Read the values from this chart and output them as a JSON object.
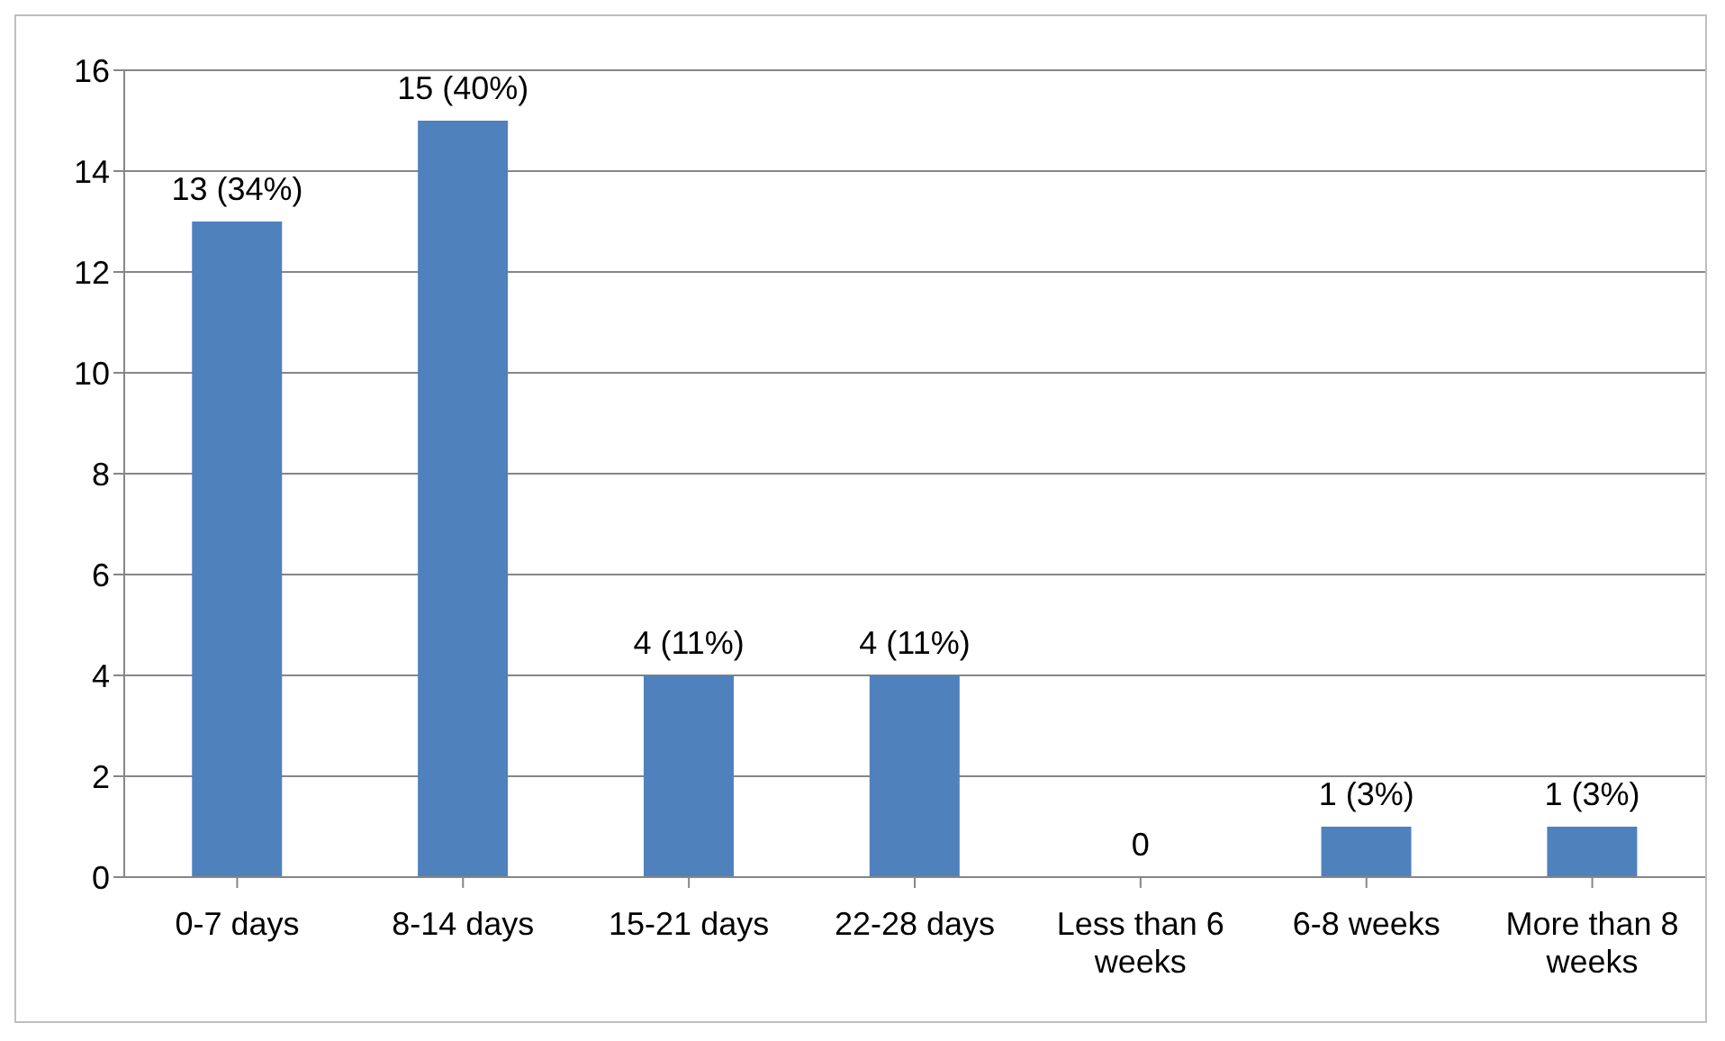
{
  "chart_data": {
    "type": "bar",
    "categories": [
      "0-7 days",
      "8-14 days",
      "15-21 days",
      "22-28 days",
      "Less than 6 weeks",
      "6-8 weeks",
      "More than 8 weeks"
    ],
    "values": [
      13,
      15,
      4,
      4,
      0,
      1,
      1
    ],
    "value_labels": [
      "13 (34%)",
      "15 (40%)",
      "4 (11%)",
      "4 (11%)",
      "0",
      "1 (3%)",
      "1 (3%)"
    ],
    "color": "#4f81bd",
    "ylim": [
      0,
      16
    ],
    "yticks": [
      0,
      2,
      4,
      6,
      8,
      10,
      12,
      14,
      16
    ],
    "grid": "y",
    "legend": false
  }
}
